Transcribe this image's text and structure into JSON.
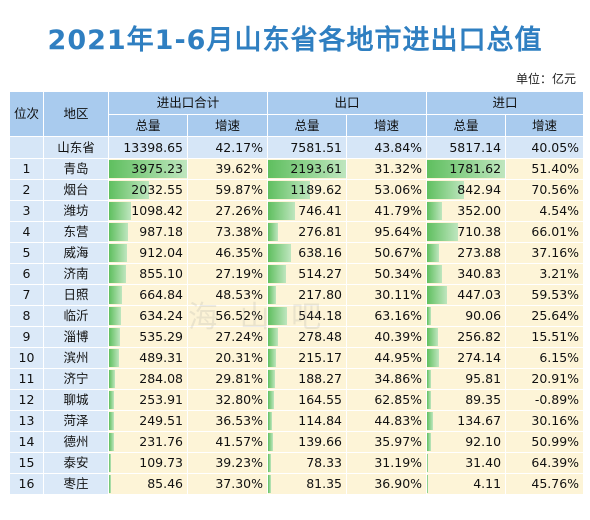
{
  "title": "2021年1-6月山东省各地市进出口总值",
  "unit": "单位：亿元",
  "headers": {
    "rank": "位次",
    "region": "地区",
    "total": "进出口合计",
    "export": "出口",
    "import": "进口",
    "amount": "总量",
    "growth": "增速"
  },
  "province": {
    "name": "山东省",
    "total": "13398.65",
    "total_growth": "42.17%",
    "export": "7581.51",
    "export_growth": "43.84%",
    "import": "5817.14",
    "import_growth": "40.05%"
  },
  "rows": [
    {
      "rank": "1",
      "city": "青岛",
      "total": "3975.23",
      "tg": "39.62%",
      "export": "2193.61",
      "eg": "31.32%",
      "import": "1781.62",
      "ig": "51.40%",
      "tv": 3975.23,
      "ev": 2193.61,
      "iv": 1781.62
    },
    {
      "rank": "2",
      "city": "烟台",
      "total": "2032.55",
      "tg": "59.87%",
      "export": "1189.62",
      "eg": "53.06%",
      "import": "842.94",
      "ig": "70.56%",
      "tv": 2032.55,
      "ev": 1189.62,
      "iv": 842.94
    },
    {
      "rank": "3",
      "city": "潍坊",
      "total": "1098.42",
      "tg": "27.26%",
      "export": "746.41",
      "eg": "41.79%",
      "import": "352.00",
      "ig": "4.54%",
      "tv": 1098.42,
      "ev": 746.41,
      "iv": 352.0
    },
    {
      "rank": "4",
      "city": "东营",
      "total": "987.18",
      "tg": "73.38%",
      "export": "276.81",
      "eg": "95.64%",
      "import": "710.38",
      "ig": "66.01%",
      "tv": 987.18,
      "ev": 276.81,
      "iv": 710.38
    },
    {
      "rank": "5",
      "city": "威海",
      "total": "912.04",
      "tg": "46.35%",
      "export": "638.16",
      "eg": "50.67%",
      "import": "273.88",
      "ig": "37.16%",
      "tv": 912.04,
      "ev": 638.16,
      "iv": 273.88
    },
    {
      "rank": "6",
      "city": "济南",
      "total": "855.10",
      "tg": "27.19%",
      "export": "514.27",
      "eg": "50.34%",
      "import": "340.83",
      "ig": "3.21%",
      "tv": 855.1,
      "ev": 514.27,
      "iv": 340.83
    },
    {
      "rank": "7",
      "city": "日照",
      "total": "664.84",
      "tg": "48.53%",
      "export": "217.80",
      "eg": "30.11%",
      "import": "447.03",
      "ig": "59.53%",
      "tv": 664.84,
      "ev": 217.8,
      "iv": 447.03
    },
    {
      "rank": "8",
      "city": "临沂",
      "total": "634.24",
      "tg": "56.52%",
      "export": "544.18",
      "eg": "63.16%",
      "import": "90.06",
      "ig": "25.64%",
      "tv": 634.24,
      "ev": 544.18,
      "iv": 90.06
    },
    {
      "rank": "9",
      "city": "淄博",
      "total": "535.29",
      "tg": "27.24%",
      "export": "278.48",
      "eg": "40.39%",
      "import": "256.82",
      "ig": "15.51%",
      "tv": 535.29,
      "ev": 278.48,
      "iv": 256.82
    },
    {
      "rank": "10",
      "city": "滨州",
      "total": "489.31",
      "tg": "20.31%",
      "export": "215.17",
      "eg": "44.95%",
      "import": "274.14",
      "ig": "6.15%",
      "tv": 489.31,
      "ev": 215.17,
      "iv": 274.14
    },
    {
      "rank": "11",
      "city": "济宁",
      "total": "284.08",
      "tg": "29.81%",
      "export": "188.27",
      "eg": "34.86%",
      "import": "95.81",
      "ig": "20.91%",
      "tv": 284.08,
      "ev": 188.27,
      "iv": 95.81
    },
    {
      "rank": "12",
      "city": "聊城",
      "total": "253.91",
      "tg": "32.80%",
      "export": "164.55",
      "eg": "62.85%",
      "import": "89.35",
      "ig": "-0.89%",
      "tv": 253.91,
      "ev": 164.55,
      "iv": 89.35
    },
    {
      "rank": "13",
      "city": "菏泽",
      "total": "249.51",
      "tg": "36.53%",
      "export": "114.84",
      "eg": "44.83%",
      "import": "134.67",
      "ig": "30.16%",
      "tv": 249.51,
      "ev": 114.84,
      "iv": 134.67
    },
    {
      "rank": "14",
      "city": "德州",
      "total": "231.76",
      "tg": "41.57%",
      "export": "139.66",
      "eg": "35.97%",
      "import": "92.10",
      "ig": "50.99%",
      "tv": 231.76,
      "ev": 139.66,
      "iv": 92.1
    },
    {
      "rank": "15",
      "city": "泰安",
      "total": "109.73",
      "tg": "39.23%",
      "export": "78.33",
      "eg": "31.19%",
      "import": "31.40",
      "ig": "64.39%",
      "tv": 109.73,
      "ev": 78.33,
      "iv": 31.4
    },
    {
      "rank": "16",
      "city": "枣庄",
      "total": "85.46",
      "tg": "37.30%",
      "export": "81.35",
      "eg": "36.90%",
      "import": "4.11",
      "ig": "45.76%",
      "tv": 85.46,
      "ev": 81.35,
      "iv": 4.11
    }
  ],
  "colors": {
    "title": "#2f7fc1",
    "header_bg": "#a9cbee",
    "province_bg": "#d6e6f7",
    "body_bg": "#fdf4d7",
    "bar": "#5fbf5f"
  }
}
